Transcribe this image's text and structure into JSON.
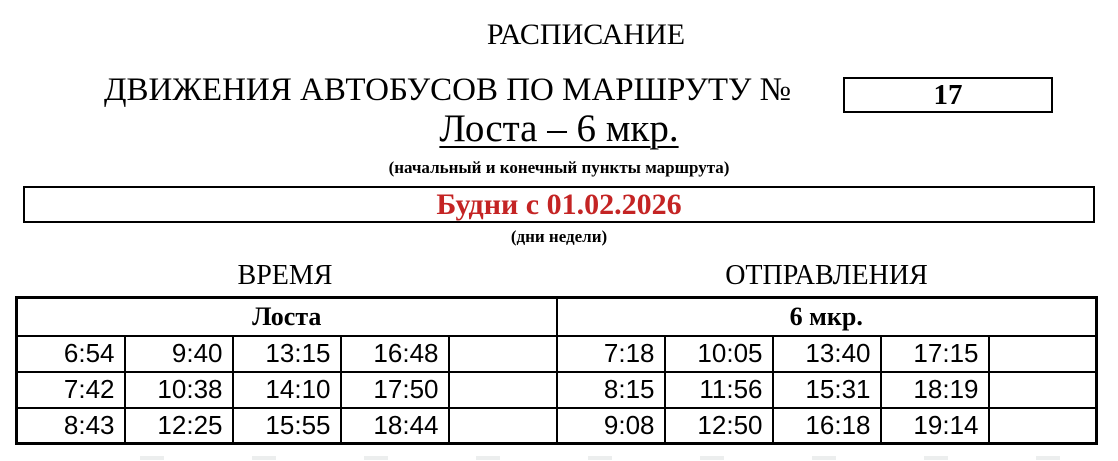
{
  "header": {
    "title": "РАСПИСАНИЕ",
    "subtitle": "ДВИЖЕНИЯ АВТОБУСОВ ПО МАРШРУТУ №",
    "route_number": "17",
    "route_name": "Лоста – 6 мкр.",
    "route_caption": "(начальный и конечный пункты маршрута)"
  },
  "banner": {
    "text": "Будни с 01.02.2026",
    "caption": "(дни недели)"
  },
  "colors": {
    "banner_text": "#c42424",
    "border": "#000000",
    "background": "#ffffff"
  },
  "table": {
    "heading_left": "ВРЕМЯ",
    "heading_right": "ОТПРАВЛЕНИЯ",
    "left": {
      "stop": "Лоста",
      "rows": [
        [
          "6:54",
          "9:40",
          "13:15",
          "16:48",
          ""
        ],
        [
          "7:42",
          "10:38",
          "14:10",
          "17:50",
          ""
        ],
        [
          "8:43",
          "12:25",
          "15:55",
          "18:44",
          ""
        ]
      ]
    },
    "right": {
      "stop": "6 мкр.",
      "rows": [
        [
          "7:18",
          "10:05",
          "13:40",
          "17:15",
          ""
        ],
        [
          "8:15",
          "11:56",
          "15:31",
          "18:19",
          ""
        ],
        [
          "9:08",
          "12:50",
          "16:18",
          "19:14",
          ""
        ]
      ]
    }
  }
}
